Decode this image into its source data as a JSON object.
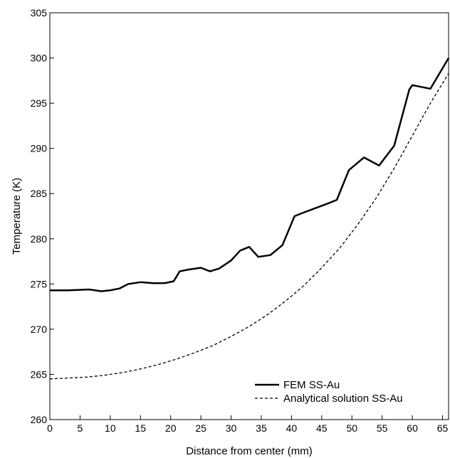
{
  "chart_data": {
    "type": "line",
    "xlabel": "Distance from center (mm)",
    "ylabel": "Temperature (K)",
    "xlim": [
      0,
      66
    ],
    "ylim": [
      260,
      305
    ],
    "xticks": [
      0,
      5,
      10,
      15,
      20,
      25,
      30,
      35,
      40,
      45,
      50,
      55,
      60,
      65
    ],
    "yticks": [
      260,
      265,
      270,
      275,
      280,
      285,
      290,
      295,
      300,
      305
    ],
    "grid": false,
    "legend_position": "bottom-right",
    "series": [
      {
        "name": "FEM SS-Au",
        "style": "solid",
        "color": "#000000",
        "x": [
          0,
          3,
          6.5,
          8.5,
          10,
          11.5,
          13,
          15,
          17,
          19,
          20.5,
          21.5,
          23,
          25,
          26.5,
          28,
          30,
          31.5,
          33,
          34.5,
          36.5,
          38.5,
          40.5,
          42,
          46,
          47.5,
          49.5,
          52,
          54.5,
          57,
          59.5,
          60,
          63,
          66
        ],
        "y": [
          274.3,
          274.3,
          274.4,
          274.2,
          274.3,
          274.5,
          275.0,
          275.2,
          275.1,
          275.1,
          275.3,
          276.4,
          276.6,
          276.8,
          276.4,
          276.7,
          277.6,
          278.7,
          279.1,
          278.0,
          278.2,
          279.3,
          282.5,
          282.9,
          283.9,
          284.3,
          287.6,
          289.0,
          288.1,
          290.3,
          296.5,
          297.0,
          296.6,
          300.0
        ]
      },
      {
        "name": "Analytical solution SS-Au",
        "style": "dashed",
        "color": "#000000",
        "x": [
          0,
          3,
          6,
          9,
          12,
          15,
          18,
          21,
          24,
          27,
          30,
          33,
          36,
          39,
          42,
          45,
          48,
          51,
          54,
          57,
          60,
          63,
          66
        ],
        "y": [
          264.5,
          264.6,
          264.7,
          264.9,
          265.2,
          265.6,
          266.1,
          266.7,
          267.4,
          268.2,
          269.2,
          270.3,
          271.6,
          273.1,
          274.8,
          276.8,
          279.0,
          281.6,
          284.5,
          287.8,
          291.4,
          295.0,
          298.3
        ]
      }
    ]
  }
}
